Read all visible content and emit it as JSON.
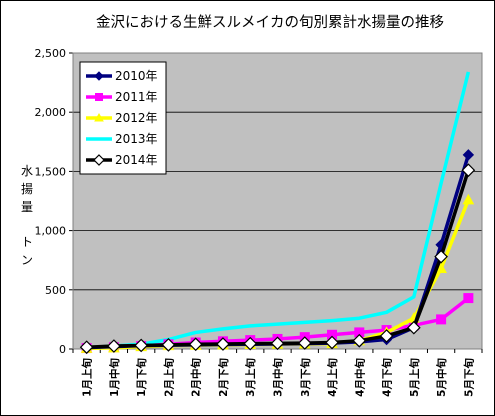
{
  "chart_data": {
    "type": "line",
    "title": "金沢における生鮮スルメイカの旬別累計水揚量の推移",
    "ylabel": [
      "水",
      "揚",
      "量",
      "",
      "ト",
      "ン"
    ],
    "xlabel": "",
    "categories": [
      "1月上旬",
      "1月中旬",
      "1月下旬",
      "2月上旬",
      "2月中旬",
      "2月下旬",
      "3月上旬",
      "3月中旬",
      "3月下旬",
      "4月上旬",
      "4月中旬",
      "4月下旬",
      "5月上旬",
      "5月中旬",
      "5月下旬"
    ],
    "y_ticks": [
      "0",
      "500",
      "1,000",
      "1,500",
      "2,000",
      "2,500"
    ],
    "ylim": [
      0,
      2500
    ],
    "grid": "horizontal",
    "legend_position": "top-left",
    "plot_background": "#c0c0c0",
    "series": [
      {
        "name": "2010年",
        "color": "#000080",
        "marker": "diamond",
        "values": [
          12,
          20,
          28,
          32,
          35,
          38,
          40,
          42,
          45,
          50,
          60,
          80,
          180,
          880,
          1640
        ]
      },
      {
        "name": "2011年",
        "color": "#ff00ff",
        "marker": "square",
        "values": [
          8,
          15,
          25,
          40,
          55,
          65,
          75,
          85,
          100,
          120,
          140,
          160,
          200,
          250,
          430
        ]
      },
      {
        "name": "2012年",
        "color": "#ffff00",
        "marker": "triangle",
        "values": [
          5,
          10,
          20,
          28,
          32,
          35,
          38,
          40,
          42,
          45,
          70,
          140,
          260,
          680,
          1260
        ]
      },
      {
        "name": "2013年",
        "color": "#00ffff",
        "marker": "none",
        "values": [
          10,
          25,
          40,
          80,
          140,
          170,
          195,
          210,
          225,
          240,
          260,
          310,
          440,
          1400,
          2340
        ]
      },
      {
        "name": "2014年",
        "color": "#000000",
        "marker": "open-diamond",
        "values": [
          15,
          25,
          30,
          35,
          40,
          42,
          45,
          48,
          50,
          55,
          70,
          110,
          180,
          780,
          1510
        ]
      }
    ]
  }
}
